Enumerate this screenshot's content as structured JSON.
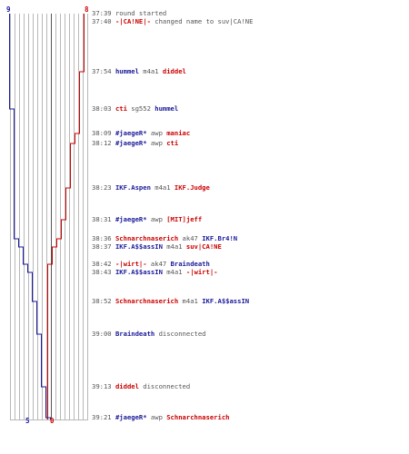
{
  "scores": {
    "top_blue": "9",
    "top_red": "8",
    "bottom_blue": "5",
    "bottom_red": "0"
  },
  "colors": {
    "team_blue": "#1a1aa0",
    "team_red": "#cc0000",
    "grid": "#b8b8b8",
    "text": "#555555"
  },
  "chart_data": {
    "type": "line",
    "x_unit": "players remaining",
    "xlim": [
      0,
      9
    ],
    "series": [
      {
        "name": "",
        "color": "#1a1aa0",
        "points": [
          [
            9,
            "37:39"
          ],
          [
            8,
            "38:03"
          ],
          [
            7,
            "38:36"
          ],
          [
            6,
            "38:37"
          ],
          [
            5,
            "38:42"
          ],
          [
            4,
            "38:43"
          ],
          [
            3,
            "38:52"
          ],
          [
            2,
            "39:00"
          ],
          [
            1,
            "39:13"
          ],
          [
            0,
            "39:21"
          ]
        ]
      },
      {
        "name": "",
        "color": "#cc0000",
        "points": [
          [
            8,
            "37:39"
          ],
          [
            7,
            "37:54"
          ],
          [
            6,
            "38:09"
          ],
          [
            5,
            "38:12"
          ],
          [
            4,
            "38:23"
          ],
          [
            3,
            "38:31"
          ],
          [
            2,
            "38:36"
          ],
          [
            1,
            "38:37"
          ],
          [
            0,
            "38:42"
          ]
        ]
      }
    ]
  },
  "events": [
    {
      "time": "37:39",
      "parts": [
        {
          "text": "round started",
          "c": "plain"
        }
      ]
    },
    {
      "time": "37:40",
      "parts": [
        {
          "text": "-|CA!NE|-",
          "c": "red"
        },
        {
          "text": " changed name to ",
          "c": "plain"
        },
        {
          "text": "suv|CA!NE",
          "c": "plain"
        }
      ]
    },
    {
      "time": "37:54",
      "parts": [
        {
          "text": "hummel",
          "c": "blue"
        },
        {
          "text": " m4a1 ",
          "c": "plain"
        },
        {
          "text": "diddel",
          "c": "red"
        }
      ]
    },
    {
      "time": "38:03",
      "parts": [
        {
          "text": "cti",
          "c": "red"
        },
        {
          "text": " sg552 ",
          "c": "plain"
        },
        {
          "text": "hummel",
          "c": "blue"
        }
      ]
    },
    {
      "time": "38:09",
      "parts": [
        {
          "text": "#jaegeR*",
          "c": "blue"
        },
        {
          "text": " awp ",
          "c": "plain"
        },
        {
          "text": "maniac",
          "c": "red"
        }
      ]
    },
    {
      "time": "38:12",
      "parts": [
        {
          "text": "#jaegeR*",
          "c": "blue"
        },
        {
          "text": " awp ",
          "c": "plain"
        },
        {
          "text": "cti",
          "c": "red"
        }
      ]
    },
    {
      "time": "38:23",
      "parts": [
        {
          "text": "IKF.Aspen",
          "c": "blue"
        },
        {
          "text": " m4a1 ",
          "c": "plain"
        },
        {
          "text": "IKF.Judge",
          "c": "red"
        }
      ]
    },
    {
      "time": "38:31",
      "parts": [
        {
          "text": "#jaegeR*",
          "c": "blue"
        },
        {
          "text": " awp ",
          "c": "plain"
        },
        {
          "text": "[MIT]jeff",
          "c": "red"
        }
      ]
    },
    {
      "time": "38:36",
      "parts": [
        {
          "text": "Schnarchnaserich",
          "c": "red"
        },
        {
          "text": " ak47 ",
          "c": "plain"
        },
        {
          "text": "IKF.Br4!N",
          "c": "blue"
        }
      ]
    },
    {
      "time": "38:37",
      "parts": [
        {
          "text": "IKF.A$$assIN",
          "c": "blue"
        },
        {
          "text": " m4a1 ",
          "c": "plain"
        },
        {
          "text": "suv|CA!NE",
          "c": "red"
        }
      ]
    },
    {
      "time": "38:42",
      "parts": [
        {
          "text": "-|wirt|-",
          "c": "red"
        },
        {
          "text": " ak47 ",
          "c": "plain"
        },
        {
          "text": "Braindeath",
          "c": "blue"
        }
      ]
    },
    {
      "time": "38:43",
      "parts": [
        {
          "text": "IKF.A$$assIN",
          "c": "blue"
        },
        {
          "text": " m4a1 ",
          "c": "plain"
        },
        {
          "text": "-|wirt|-",
          "c": "red"
        }
      ]
    },
    {
      "time": "38:52",
      "parts": [
        {
          "text": "Schnarchnaserich",
          "c": "red"
        },
        {
          "text": " m4a1 ",
          "c": "plain"
        },
        {
          "text": "IKF.A$$assIN",
          "c": "blue"
        }
      ]
    },
    {
      "time": "39:00",
      "parts": [
        {
          "text": "Braindeath",
          "c": "blue"
        },
        {
          "text": " disconnected",
          "c": "plain"
        }
      ]
    },
    {
      "time": "39:13",
      "parts": [
        {
          "text": "diddel",
          "c": "red"
        },
        {
          "text": " disconnected",
          "c": "plain"
        }
      ]
    },
    {
      "time": "39:21",
      "parts": [
        {
          "text": "#jaegeR*",
          "c": "blue"
        },
        {
          "text": " awp ",
          "c": "plain"
        },
        {
          "text": "Schnarchnaserich",
          "c": "red"
        }
      ]
    }
  ]
}
